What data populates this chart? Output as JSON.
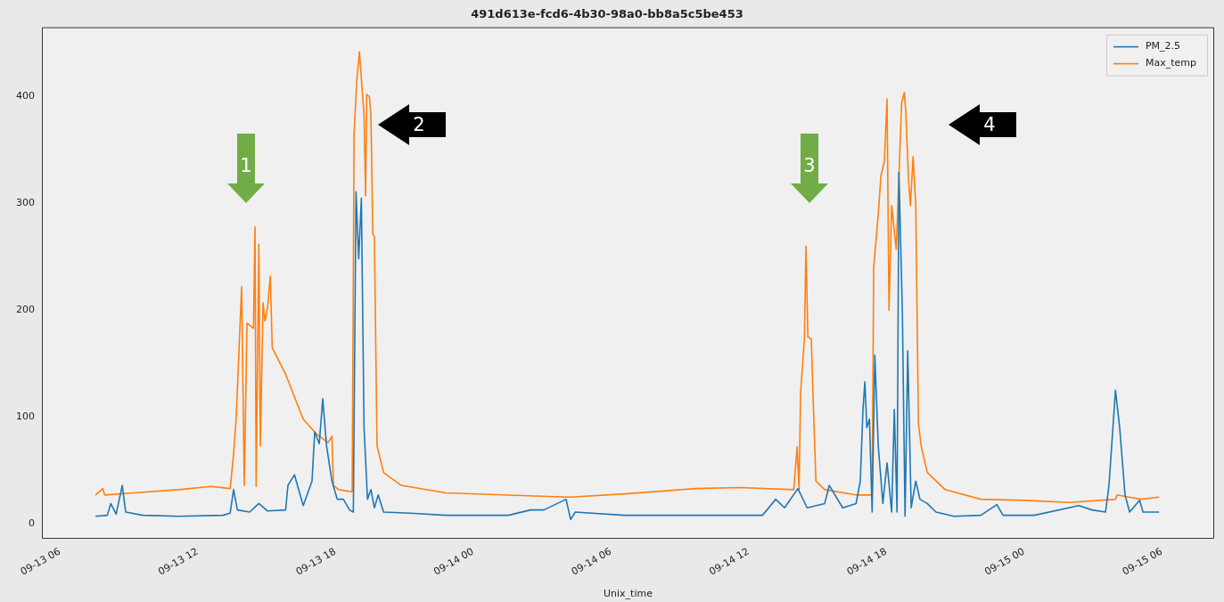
{
  "chart_data": {
    "type": "line",
    "title": "491d613e-fcd6-4b30-98a0-bb8a5c5be453",
    "xlabel": "Unix_time",
    "legend": "top right",
    "grid": false,
    "xlim": [
      "--09-13T05:13",
      "--09-15T08:17"
    ],
    "xticks": [
      {
        "value": "--09-13T06:00",
        "label": "09-13 06"
      },
      {
        "value": "--09-13T12:00",
        "label": "09-13 12"
      },
      {
        "value": "--09-13T18:00",
        "label": "09-13 18"
      },
      {
        "value": "--09-14T00:00",
        "label": "09-14 00"
      },
      {
        "value": "--09-14T06:00",
        "label": "09-14 06"
      },
      {
        "value": "--09-14T12:00",
        "label": "09-14 12"
      },
      {
        "value": "--09-14T18:00",
        "label": "09-14 18"
      },
      {
        "value": "--09-15T00:00",
        "label": "09-15 00"
      },
      {
        "value": "--09-15T06:00",
        "label": "09-15 06"
      }
    ],
    "ylim": [
      -14,
      465
    ],
    "yticks": [
      0,
      100,
      200,
      300,
      400
    ],
    "annotations": [
      "1",
      "2",
      "3",
      "4"
    ],
    "series": [
      {
        "name": "PM_2.5",
        "color": "#1f77b4",
        "x": [
          "--09-13T07:33",
          "--09-13T08:04",
          "--09-13T08:13",
          "--09-13T08:27",
          "--09-13T08:43",
          "--09-13T08:52",
          "--09-13T09:37",
          "--09-13T11:10",
          "--09-13T13:06",
          "--09-13T13:25",
          "--09-13T13:34",
          "--09-13T13:44",
          "--09-13T14:16",
          "--09-13T14:40",
          "--09-13T15:03",
          "--09-13T15:50",
          "--09-13T15:56",
          "--09-13T16:13",
          "--09-13T16:36",
          "--09-13T16:59",
          "--09-13T17:06",
          "--09-13T17:18",
          "--09-13T17:27",
          "--09-13T17:37",
          "--09-13T17:51",
          "--09-13T18:05",
          "--09-13T18:21",
          "--09-13T18:37",
          "--09-13T18:47",
          "--09-13T18:54",
          "--09-13T19:01",
          "--09-13T19:08",
          "--09-13T19:15",
          "--09-13T19:24",
          "--09-13T19:33",
          "--09-13T19:42",
          "--09-13T19:52",
          "--09-13T20:06",
          "--09-13T21:16",
          "--09-13T22:49",
          "--09-14T00:22",
          "--09-14T01:32",
          "--09-14T02:30",
          "--09-14T03:05",
          "--09-14T04:03",
          "--09-14T04:15",
          "--09-14T04:27",
          "--09-14T06:35",
          "--09-14T09:41",
          "--09-14T12:36",
          "--09-14T12:48",
          "--09-14T13:11",
          "--09-14T13:34",
          "--09-14T14:09",
          "--09-14T14:33",
          "--09-14T15:19",
          "--09-14T15:31",
          "--09-14T16:06",
          "--09-14T16:41",
          "--09-14T16:52",
          "--09-14T16:59",
          "--09-14T17:04",
          "--09-14T17:09",
          "--09-14T17:16",
          "--09-14T17:23",
          "--09-14T17:30",
          "--09-14T17:39",
          "--09-14T17:51",
          "--09-14T18:02",
          "--09-14T18:14",
          "--09-14T18:21",
          "--09-14T18:28",
          "--09-14T18:33",
          "--09-14T18:42",
          "--09-14T18:49",
          "--09-14T18:56",
          "--09-14T19:05",
          "--09-14T19:17",
          "--09-14T19:28",
          "--09-14T19:47",
          "--09-14T20:10",
          "--09-14T20:57",
          "--09-14T22:07",
          "--09-14T22:49",
          "--09-14T23:05",
          "--09-15T00:27",
          "--09-15T02:23",
          "--09-15T02:58",
          "--09-15T03:33",
          "--09-15T03:42",
          "--09-15T03:59",
          "--09-15T04:10",
          "--09-15T04:24",
          "--09-15T04:36",
          "--09-15T05:02",
          "--09-15T05:11",
          "--09-15T05:53"
        ],
        "values": [
          7,
          8,
          19,
          9,
          36,
          11,
          8,
          7,
          8,
          10,
          32,
          13,
          11,
          19,
          12,
          13,
          36,
          46,
          17,
          40,
          86,
          75,
          117,
          73,
          40,
          23,
          23,
          13,
          11,
          311,
          248,
          305,
          90,
          23,
          32,
          15,
          27,
          11,
          10,
          8,
          8,
          8,
          13,
          13,
          23,
          4,
          11,
          8,
          8,
          8,
          13,
          23,
          15,
          33,
          15,
          19,
          36,
          15,
          19,
          40,
          107,
          133,
          90,
          98,
          11,
          158,
          73,
          19,
          57,
          11,
          107,
          11,
          329,
          198,
          7,
          162,
          15,
          40,
          23,
          19,
          11,
          7,
          8,
          18,
          8,
          8,
          17,
          13,
          11,
          36,
          125,
          90,
          27,
          11,
          22,
          11,
          11
        ]
      },
      {
        "name": "Max_temp",
        "color": "#ff7f0e",
        "x": [
          "--09-13T07:33",
          "--09-13T07:52",
          "--09-13T07:57",
          "--09-13T09:13",
          "--09-13T11:10",
          "--09-13T12:36",
          "--09-13T13:25",
          "--09-13T13:34",
          "--09-13T13:41",
          "--09-13T13:55",
          "--09-13T14:02",
          "--09-13T14:09",
          "--09-13T14:26",
          "--09-13T14:30",
          "--09-13T14:33",
          "--09-13T14:40",
          "--09-13T14:44",
          "--09-13T14:51",
          "--09-13T14:56",
          "--09-13T15:03",
          "--09-13T15:10",
          "--09-13T15:15",
          "--09-13T15:50",
          "--09-13T16:36",
          "--09-13T17:11",
          "--09-13T17:41",
          "--09-13T17:51",
          "--09-13T17:55",
          "--09-13T18:09",
          "--09-13T18:44",
          "--09-13T18:49",
          "--09-13T18:56",
          "--09-13T19:03",
          "--09-13T19:10",
          "--09-13T19:15",
          "--09-13T19:19",
          "--09-13T19:22",
          "--09-13T19:29",
          "--09-13T19:33",
          "--09-13T19:38",
          "--09-13T19:42",
          "--09-13T19:49",
          "--09-13T20:06",
          "--09-13T20:52",
          "--09-13T22:49",
          "--09-14T02:42",
          "--09-14T04:15",
          "--09-14T06:35",
          "--09-14T09:41",
          "--09-14T11:38",
          "--09-14T13:58",
          "--09-14T14:07",
          "--09-14T14:12",
          "--09-14T14:16",
          "--09-14T14:26",
          "--09-14T14:30",
          "--09-14T14:35",
          "--09-14T14:44",
          "--09-14T14:49",
          "--09-14T14:56",
          "--09-14T15:19",
          "--09-14T16:41",
          "--09-14T17:23",
          "--09-14T17:27",
          "--09-14T17:39",
          "--09-14T17:46",
          "--09-14T17:55",
          "--09-14T18:02",
          "--09-14T18:07",
          "--09-14T18:14",
          "--09-14T18:26",
          "--09-14T18:40",
          "--09-14T18:47",
          "--09-14T18:51",
          "--09-14T18:58",
          "--09-14T19:03",
          "--09-14T19:10",
          "--09-14T19:17",
          "--09-14T19:24",
          "--09-14T19:31",
          "--09-14T19:47",
          "--09-14T20:34",
          "--09-14T22:07",
          "--09-15T00:03",
          "--09-15T02:00",
          "--09-15T03:59",
          "--09-15T04:03",
          "--09-15T05:06",
          "--09-15T05:53"
        ],
        "values": [
          27,
          33,
          27,
          29,
          32,
          35,
          33,
          65,
          100,
          222,
          36,
          188,
          183,
          278,
          35,
          262,
          73,
          207,
          190,
          203,
          232,
          165,
          140,
          98,
          84,
          76,
          82,
          36,
          32,
          30,
          365,
          415,
          442,
          407,
          382,
          307,
          402,
          400,
          382,
          271,
          269,
          73,
          48,
          36,
          29,
          26,
          25,
          28,
          33,
          34,
          32,
          72,
          32,
          123,
          173,
          260,
          175,
          173,
          115,
          40,
          32,
          27,
          27,
          240,
          290,
          326,
          340,
          398,
          200,
          298,
          257,
          394,
          404,
          386,
          323,
          298,
          344,
          298,
          94,
          73,
          48,
          32,
          23,
          22,
          20,
          23,
          27,
          23,
          25
        ]
      }
    ]
  }
}
